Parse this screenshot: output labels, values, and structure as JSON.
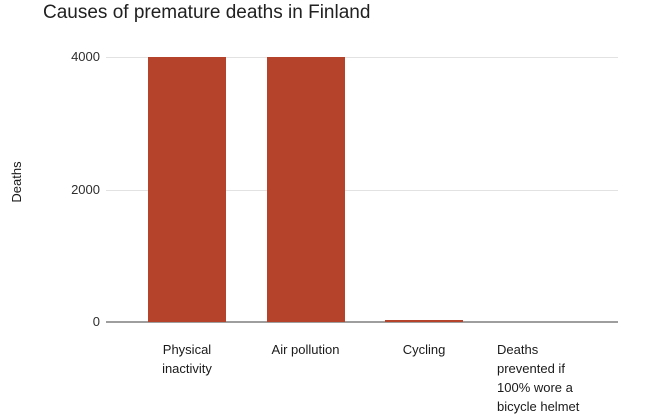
{
  "chart": {
    "colors": {
      "bar": "#b5432c",
      "gridline": "#e2e2e2",
      "baseline": "#9e9e9e",
      "text": "#1a1a1a",
      "background": "#ffffff"
    }
  },
  "chart_data": {
    "type": "bar",
    "title": "Causes of premature deaths in Finland",
    "xlabel": "",
    "ylabel": "Deaths",
    "categories": [
      "Physical inactivity",
      "Air pollution",
      "Cycling",
      "Deaths prevented if 100% wore a bicycle helmet"
    ],
    "values": [
      4000,
      4000,
      30,
      0
    ],
    "x_tick_display": [
      "Physical\ninactivity",
      "Air pollution",
      "Cycling",
      "Deaths\nprevented if\n100% wore a\nbicycle helmet"
    ],
    "yticks": [
      0,
      2000,
      4000
    ],
    "ytick_labels": [
      "0",
      "2000",
      "4000"
    ],
    "ylim": [
      0,
      4000
    ],
    "grid": true,
    "legend": "none",
    "bar_color": "#b5432c"
  }
}
